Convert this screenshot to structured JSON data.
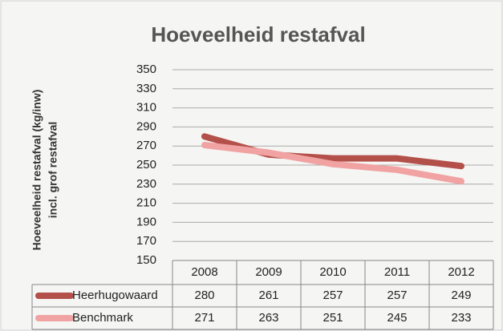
{
  "chart_data": {
    "type": "line",
    "title": "Hoeveelheid restafval",
    "y_label": [
      "Hoeveelheid restafval (kg/inw)",
      "incl. grof restafval"
    ],
    "categories": [
      "2008",
      "2009",
      "2010",
      "2011",
      "2012"
    ],
    "series": [
      {
        "name": "Heerhugowaard",
        "color": "#b4504a",
        "values": [
          280,
          261,
          257,
          257,
          249
        ]
      },
      {
        "name": "Benchmark",
        "color": "#f0a3a2",
        "values": [
          271,
          263,
          251,
          245,
          233
        ]
      }
    ],
    "ylim": [
      150,
      350
    ],
    "yticks": [
      150,
      170,
      190,
      210,
      230,
      250,
      270,
      290,
      310,
      330,
      350
    ],
    "grid": true
  }
}
